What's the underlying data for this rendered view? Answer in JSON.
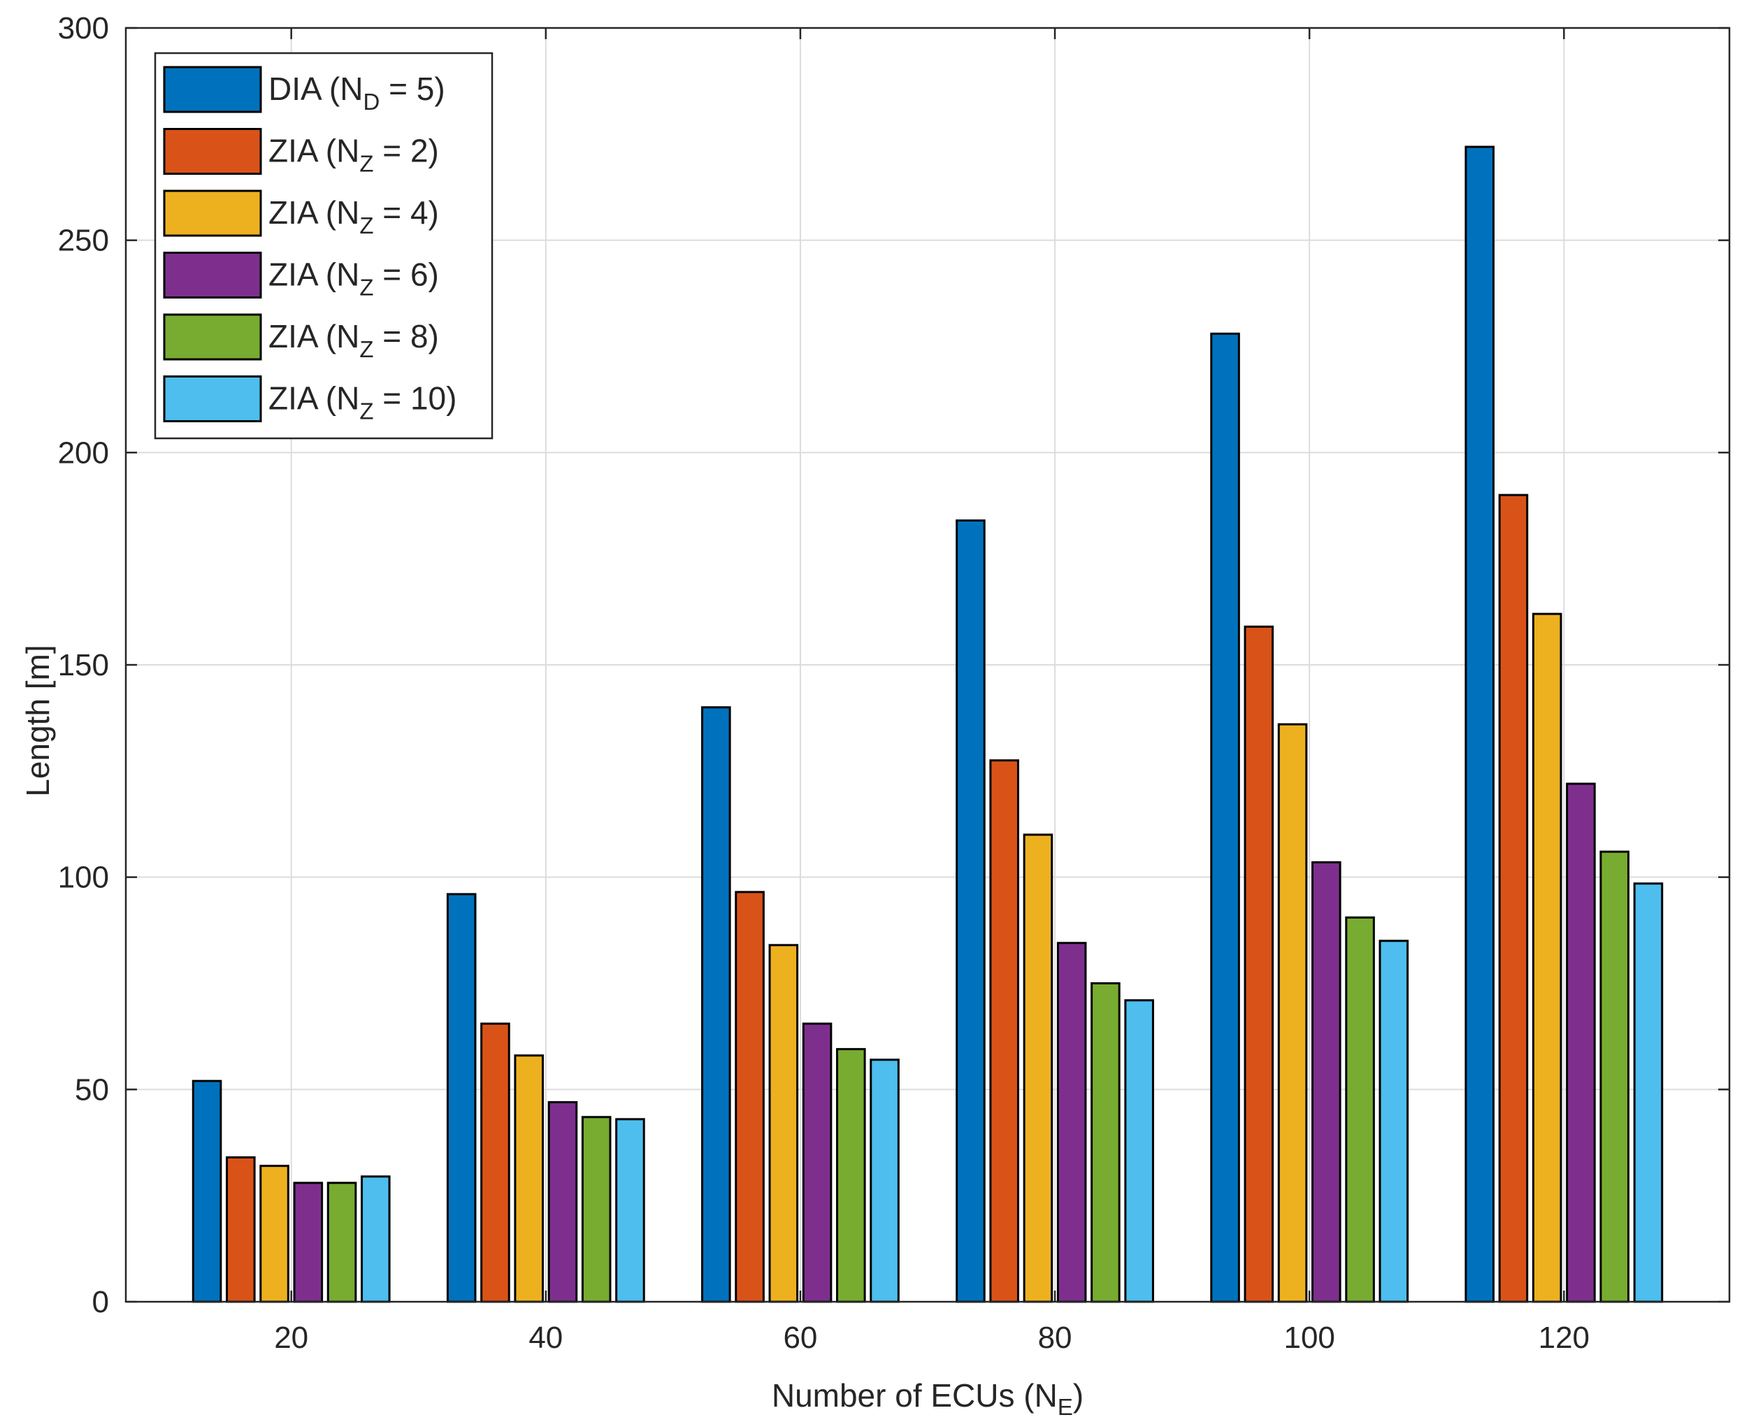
{
  "chart_data": {
    "type": "bar",
    "xlabel": "Number of ECUs (N",
    "xlabel_sub": "E",
    "xlabel_end": ")",
    "ylabel": "Length [m]",
    "ylim": [
      0,
      300
    ],
    "yticks": [
      0,
      50,
      100,
      150,
      200,
      250,
      300
    ],
    "categories": [
      "20",
      "40",
      "60",
      "80",
      "100",
      "120"
    ],
    "grid": true,
    "legend_position": "top-left",
    "series": [
      {
        "name": "DIA (N",
        "sub": "D",
        "suffix": " = 5)",
        "color": "#0072BD",
        "values": [
          52,
          96,
          140,
          184,
          228,
          272
        ]
      },
      {
        "name": "ZIA (N",
        "sub": "Z",
        "suffix": " = 2)",
        "color": "#D95319",
        "values": [
          34,
          65.5,
          96.5,
          127.5,
          159,
          190
        ]
      },
      {
        "name": "ZIA (N",
        "sub": "Z",
        "suffix": " = 4)",
        "color": "#EDB120",
        "values": [
          32,
          58,
          84,
          110,
          136,
          162
        ]
      },
      {
        "name": "ZIA (N",
        "sub": "Z",
        "suffix": " = 6)",
        "color": "#7E2F8E",
        "values": [
          28,
          47,
          65.5,
          84.5,
          103.5,
          122
        ]
      },
      {
        "name": "ZIA (N",
        "sub": "Z",
        "suffix": " = 8)",
        "color": "#77AC30",
        "values": [
          28,
          43.5,
          59.5,
          75,
          90.5,
          106
        ]
      },
      {
        "name": "ZIA (N",
        "sub": "Z",
        "suffix": " = 10)",
        "color": "#4DBEEE",
        "values": [
          29.5,
          43,
          57,
          71,
          85,
          98.5
        ]
      }
    ]
  }
}
